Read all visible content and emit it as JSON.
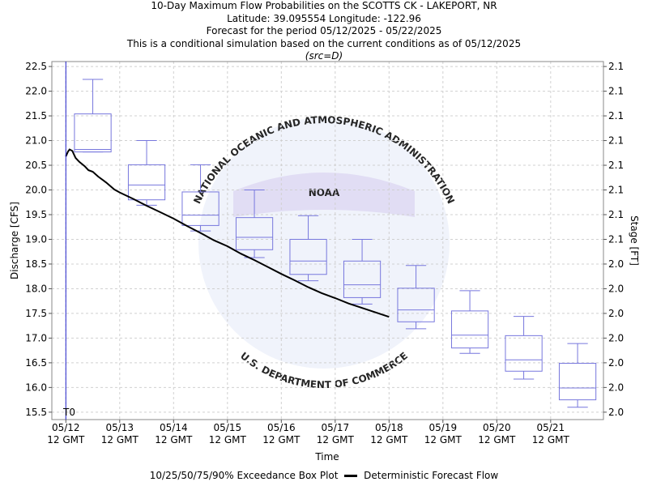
{
  "header": {
    "title": "10-Day Maximum Flow Probabilities on the SCOTTS CK - LAKEPORT, NR",
    "location": "Latitude: 39.095554 Longitude: -122.96",
    "period": "Forecast for the period 05/12/2025 - 05/22/2025",
    "note": "This is a conditional simulation based on the current conditions as of 05/12/2025",
    "source": "(src=D)"
  },
  "watermark": {
    "logo_text": "NOAA",
    "ring_top": "NATIONAL OCEANIC AND ATMOSPHERIC ADMINISTRATION",
    "ring_bottom": "U.S. DEPARTMENT OF COMMERCE"
  },
  "legend": {
    "box_label": "10/25/50/75/90% Exceedance Box Plot",
    "line_label": "Deterministic Forecast Flow"
  },
  "colors": {
    "box": "#7777dd",
    "forecast_line": "#000000",
    "t0_line": "#2222cc",
    "grid": "#d0d0d0"
  },
  "chart_data": {
    "type": "box",
    "title": "10-Day Maximum Flow Probabilities on the SCOTTS CK - LAKEPORT, NR",
    "xlabel": "Time",
    "ylabel": "Discharge [CFS]",
    "y2label": "Stage [FT]",
    "t0_label": "T0",
    "ylim": [
      15.35,
      22.6
    ],
    "yticks": [
      "15.5",
      "16.0",
      "16.5",
      "17.0",
      "17.5",
      "18.0",
      "18.5",
      "19.0",
      "19.5",
      "20.0",
      "20.5",
      "21.0",
      "21.5",
      "22.0",
      "22.5"
    ],
    "y2ticks": [
      "2.0",
      "2.0",
      "2.0",
      "2.0",
      "2.0",
      "2.0",
      "2.0",
      "2.1",
      "2.1",
      "2.1",
      "2.1",
      "2.1",
      "2.1",
      "2.1",
      "2.1"
    ],
    "xlim": [
      -0.26,
      9.98
    ],
    "xticks": [
      {
        "line1": "05/12",
        "line2": "12 GMT"
      },
      {
        "line1": "05/13",
        "line2": "12 GMT"
      },
      {
        "line1": "05/14",
        "line2": "12 GMT"
      },
      {
        "line1": "05/15",
        "line2": "12 GMT"
      },
      {
        "line1": "05/16",
        "line2": "12 GMT"
      },
      {
        "line1": "05/17",
        "line2": "12 GMT"
      },
      {
        "line1": "05/18",
        "line2": "12 GMT"
      },
      {
        "line1": "05/19",
        "line2": "12 GMT"
      },
      {
        "line1": "05/20",
        "line2": "12 GMT"
      },
      {
        "line1": "05/21",
        "line2": "12 GMT"
      }
    ],
    "boxes": [
      {
        "p10": 20.77,
        "p25": 20.77,
        "p50": 20.82,
        "p75": 21.54,
        "p90": 22.24
      },
      {
        "p10": 19.69,
        "p25": 19.8,
        "p50": 20.1,
        "p75": 20.51,
        "p90": 21.0
      },
      {
        "p10": 19.17,
        "p25": 19.28,
        "p50": 19.49,
        "p75": 19.96,
        "p90": 20.51
      },
      {
        "p10": 18.63,
        "p25": 18.79,
        "p50": 19.04,
        "p75": 19.44,
        "p90": 20.0
      },
      {
        "p10": 18.16,
        "p25": 18.29,
        "p50": 18.56,
        "p75": 19.0,
        "p90": 19.48
      },
      {
        "p10": 17.69,
        "p25": 17.82,
        "p50": 18.08,
        "p75": 18.56,
        "p90": 19.0
      },
      {
        "p10": 17.19,
        "p25": 17.33,
        "p50": 17.57,
        "p75": 18.01,
        "p90": 18.47
      },
      {
        "p10": 16.69,
        "p25": 16.8,
        "p50": 17.06,
        "p75": 17.55,
        "p90": 17.96
      },
      {
        "p10": 16.17,
        "p25": 16.33,
        "p50": 16.56,
        "p75": 17.05,
        "p90": 17.44
      },
      {
        "p10": 15.6,
        "p25": 15.75,
        "p50": 15.99,
        "p75": 16.49,
        "p90": 16.89
      }
    ],
    "forecast": {
      "x": [
        0,
        0.04,
        0.07,
        0.12,
        0.18,
        0.25,
        0.35,
        0.42,
        0.5,
        0.6,
        0.75,
        0.9,
        1.0,
        1.25,
        1.5,
        1.75,
        2.0,
        2.25,
        2.5,
        2.75,
        3.0,
        3.25,
        3.5,
        3.75,
        4.0,
        4.25,
        4.5,
        4.75,
        5.0,
        5.25,
        5.5,
        5.75,
        6.0
      ],
      "y": [
        20.68,
        20.78,
        20.82,
        20.79,
        20.65,
        20.57,
        20.48,
        20.4,
        20.37,
        20.27,
        20.15,
        20.01,
        19.95,
        19.82,
        19.68,
        19.55,
        19.42,
        19.27,
        19.13,
        18.98,
        18.86,
        18.71,
        18.58,
        18.44,
        18.3,
        18.17,
        18.03,
        17.91,
        17.81,
        17.7,
        17.61,
        17.52,
        17.43
      ]
    },
    "grid": true,
    "legend_position": "bottom"
  }
}
